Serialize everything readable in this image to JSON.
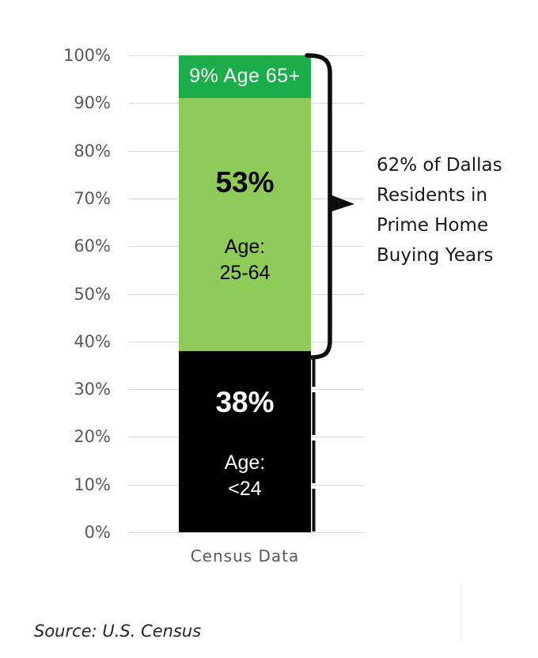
{
  "chart_data": {
    "type": "bar",
    "stacked": true,
    "categories": [
      "Census Data"
    ],
    "series": [
      {
        "name": "Age: <24",
        "value": 38,
        "color": "#000000",
        "value_label": "38%",
        "group_label": "Age:\n<24",
        "label_color": "#ffffff"
      },
      {
        "name": "Age: 25-64",
        "value": 53,
        "color": "#8fcb58",
        "value_label": "53%",
        "group_label": "Age:\n25-64",
        "label_color": "#000000"
      },
      {
        "name": "Age 65+",
        "value": 9,
        "color": "#1bae4b",
        "value_label": "9% Age 65+",
        "group_label": "",
        "label_color": "#ffffff"
      }
    ],
    "ylim": [
      0,
      100
    ],
    "yticks": [
      0,
      10,
      20,
      30,
      40,
      50,
      60,
      70,
      80,
      90,
      100
    ],
    "ytick_suffix": "%",
    "grid": true,
    "legend": false,
    "xlabel": "Census Data",
    "annotation": {
      "value": "62%",
      "text": "62% of Dallas\nResidents in\nPrime Home\nBuying Years"
    },
    "source": "Source: U.S. Census",
    "colors": {
      "gridline": "#d9d9d9",
      "axis_text": "#595959",
      "annotation_text": "#1a1a1a",
      "brace": "#0d0d0d"
    }
  }
}
